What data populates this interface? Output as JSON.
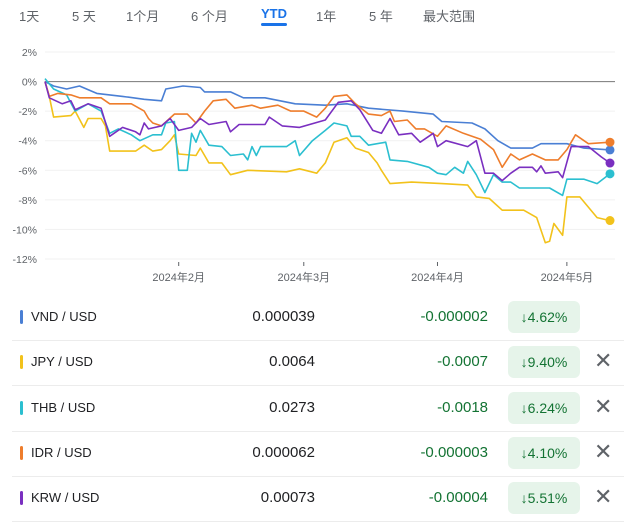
{
  "tabs": [
    {
      "label": "1天"
    },
    {
      "label": "5 天"
    },
    {
      "label": "1个月"
    },
    {
      "label": "6 个月"
    },
    {
      "label": "YTD",
      "active": true
    },
    {
      "label": "1年"
    },
    {
      "label": "5 年"
    },
    {
      "label": "最大范围"
    }
  ],
  "chart_data": {
    "type": "line",
    "ylim": [
      -12,
      2
    ],
    "xlim": [
      "2024-01-01",
      "2024-05-11"
    ],
    "y_ticks": [
      "2%",
      "0%",
      "-2%",
      "-4%",
      "-6%",
      "-8%",
      "-10%",
      "-12%"
    ],
    "y_tick_values": [
      2,
      0,
      -2,
      -4,
      -6,
      -8,
      -10,
      -12
    ],
    "x_ticks": [
      {
        "date": "2024-02-01",
        "label": "2024年2月"
      },
      {
        "date": "2024-03-01",
        "label": "2024年3月"
      },
      {
        "date": "2024-04-01",
        "label": "2024年4月"
      },
      {
        "date": "2024-05-01",
        "label": "2024年5月"
      }
    ],
    "baseline": 0,
    "grid": true,
    "series": [
      {
        "name": "VND / USD",
        "color": "#4a7fd4",
        "points": [
          [
            "2024-01-01",
            0
          ],
          [
            "2024-01-03",
            -0.3
          ],
          [
            "2024-01-06",
            -0.5
          ],
          [
            "2024-01-09",
            -0.3
          ],
          [
            "2024-01-13",
            -0.8
          ],
          [
            "2024-01-19",
            -1.0
          ],
          [
            "2024-01-24",
            -1.2
          ],
          [
            "2024-01-28",
            -1.3
          ],
          [
            "2024-01-29",
            -0.5
          ],
          [
            "2024-02-02",
            -0.3
          ],
          [
            "2024-02-06",
            -0.4
          ],
          [
            "2024-02-07",
            -0.7
          ],
          [
            "2024-02-13",
            -0.7
          ],
          [
            "2024-02-16",
            -1.1
          ],
          [
            "2024-02-21",
            -1.1
          ],
          [
            "2024-02-28",
            -1.5
          ],
          [
            "2024-03-06",
            -1.6
          ],
          [
            "2024-03-11",
            -1.5
          ],
          [
            "2024-03-16",
            -1.8
          ],
          [
            "2024-03-24",
            -2.0
          ],
          [
            "2024-03-31",
            -2.2
          ],
          [
            "2024-04-02",
            -2.7
          ],
          [
            "2024-04-09",
            -2.8
          ],
          [
            "2024-04-12",
            -3.2
          ],
          [
            "2024-04-15",
            -4.0
          ],
          [
            "2024-04-18",
            -4.5
          ],
          [
            "2024-04-23",
            -4.5
          ],
          [
            "2024-04-25",
            -4.2
          ],
          [
            "2024-05-01",
            -4.2
          ],
          [
            "2024-05-05",
            -4.5
          ],
          [
            "2024-05-11",
            -4.62
          ]
        ]
      },
      {
        "name": "JPY / USD",
        "color": "#f2c21b",
        "points": [
          [
            "2024-01-01",
            0
          ],
          [
            "2024-01-02",
            -1
          ],
          [
            "2024-01-03",
            -2.4
          ],
          [
            "2024-01-07",
            -2.3
          ],
          [
            "2024-01-08",
            -2.0
          ],
          [
            "2024-01-10",
            -3.1
          ],
          [
            "2024-01-11",
            -2.5
          ],
          [
            "2024-01-14",
            -2.5
          ],
          [
            "2024-01-15",
            -3.0
          ],
          [
            "2024-01-16",
            -4.7
          ],
          [
            "2024-01-22",
            -4.7
          ],
          [
            "2024-01-24",
            -4.3
          ],
          [
            "2024-01-26",
            -4.7
          ],
          [
            "2024-01-28",
            -4.6
          ],
          [
            "2024-01-30",
            -4.0
          ],
          [
            "2024-01-31",
            -3.6
          ],
          [
            "2024-02-01",
            -4.9
          ],
          [
            "2024-02-05",
            -5.0
          ],
          [
            "2024-02-06",
            -4.5
          ],
          [
            "2024-02-08",
            -5.5
          ],
          [
            "2024-02-11",
            -5.5
          ],
          [
            "2024-02-13",
            -6.3
          ],
          [
            "2024-02-17",
            -6.0
          ],
          [
            "2024-02-26",
            -6.1
          ],
          [
            "2024-02-29",
            -5.9
          ],
          [
            "2024-03-04",
            -6.2
          ],
          [
            "2024-03-06",
            -5.5
          ],
          [
            "2024-03-08",
            -4.1
          ],
          [
            "2024-03-11",
            -3.8
          ],
          [
            "2024-03-13",
            -4.5
          ],
          [
            "2024-03-16",
            -4.8
          ],
          [
            "2024-03-18",
            -5.5
          ],
          [
            "2024-03-19",
            -6.0
          ],
          [
            "2024-03-21",
            -6.9
          ],
          [
            "2024-03-26",
            -6.8
          ],
          [
            "2024-04-02",
            -6.9
          ],
          [
            "2024-04-08",
            -7.0
          ],
          [
            "2024-04-10",
            -7.8
          ],
          [
            "2024-04-13",
            -7.9
          ],
          [
            "2024-04-16",
            -8.7
          ],
          [
            "2024-04-21",
            -8.7
          ],
          [
            "2024-04-24",
            -9.2
          ],
          [
            "2024-04-26",
            -10.9
          ],
          [
            "2024-04-27",
            -10.8
          ],
          [
            "2024-04-28",
            -9.6
          ],
          [
            "2024-04-30",
            -10.4
          ],
          [
            "2024-05-01",
            -7.8
          ],
          [
            "2024-05-04",
            -7.8
          ],
          [
            "2024-05-08",
            -9.2
          ],
          [
            "2024-05-11",
            -9.4
          ]
        ]
      },
      {
        "name": "THB / USD",
        "color": "#2bbfd0",
        "points": [
          [
            "2024-01-01",
            0.2
          ],
          [
            "2024-01-03",
            -0.5
          ],
          [
            "2024-01-06",
            -0.9
          ],
          [
            "2024-01-08",
            -2.0
          ],
          [
            "2024-01-11",
            -1.5
          ],
          [
            "2024-01-14",
            -2.0
          ],
          [
            "2024-01-16",
            -3.5
          ],
          [
            "2024-01-18",
            -3.2
          ],
          [
            "2024-01-21",
            -3.6
          ],
          [
            "2024-01-23",
            -4.0
          ],
          [
            "2024-01-26",
            -3.6
          ],
          [
            "2024-01-28",
            -3.6
          ],
          [
            "2024-01-29",
            -2.8
          ],
          [
            "2024-01-31",
            -2.7
          ],
          [
            "2024-02-01",
            -6.0
          ],
          [
            "2024-02-03",
            -6.0
          ],
          [
            "2024-02-04",
            -3.5
          ],
          [
            "2024-02-05",
            -4.1
          ],
          [
            "2024-02-06",
            -3.3
          ],
          [
            "2024-02-08",
            -4.3
          ],
          [
            "2024-02-11",
            -4.4
          ],
          [
            "2024-02-13",
            -5.0
          ],
          [
            "2024-02-16",
            -4.9
          ],
          [
            "2024-02-17",
            -5.3
          ],
          [
            "2024-02-18",
            -4.4
          ],
          [
            "2024-02-19",
            -5.0
          ],
          [
            "2024-02-20",
            -4.4
          ],
          [
            "2024-02-26",
            -4.4
          ],
          [
            "2024-02-28",
            -4.0
          ],
          [
            "2024-02-29",
            -5.0
          ],
          [
            "2024-03-03",
            -4.0
          ],
          [
            "2024-03-06",
            -3.3
          ],
          [
            "2024-03-08",
            -2.8
          ],
          [
            "2024-03-11",
            -3.0
          ],
          [
            "2024-03-12",
            -3.7
          ],
          [
            "2024-03-14",
            -3.7
          ],
          [
            "2024-03-16",
            -4.3
          ],
          [
            "2024-03-20",
            -4.1
          ],
          [
            "2024-03-21",
            -5.3
          ],
          [
            "2024-03-25",
            -5.4
          ],
          [
            "2024-03-30",
            -5.8
          ],
          [
            "2024-04-01",
            -6.2
          ],
          [
            "2024-04-03",
            -6.3
          ],
          [
            "2024-04-05",
            -5.8
          ],
          [
            "2024-04-07",
            -6.2
          ],
          [
            "2024-04-08",
            -5.4
          ],
          [
            "2024-04-10",
            -6.3
          ],
          [
            "2024-04-12",
            -7.5
          ],
          [
            "2024-04-14",
            -6.3
          ],
          [
            "2024-04-16",
            -6.8
          ],
          [
            "2024-04-18",
            -6.8
          ],
          [
            "2024-04-20",
            -7.2
          ],
          [
            "2024-04-27",
            -7.2
          ],
          [
            "2024-04-30",
            -7.7
          ],
          [
            "2024-05-01",
            -6.6
          ],
          [
            "2024-05-05",
            -6.6
          ],
          [
            "2024-05-08",
            -6.9
          ],
          [
            "2024-05-11",
            -6.24
          ]
        ]
      },
      {
        "name": "IDR / USD",
        "color": "#ee7d2c",
        "points": [
          [
            "2024-01-01",
            0
          ],
          [
            "2024-01-02",
            -1.0
          ],
          [
            "2024-01-04",
            -0.8
          ],
          [
            "2024-01-07",
            -0.9
          ],
          [
            "2024-01-09",
            -1.1
          ],
          [
            "2024-01-14",
            -1.1
          ],
          [
            "2024-01-16",
            -1.5
          ],
          [
            "2024-01-21",
            -1.5
          ],
          [
            "2024-01-24",
            -2.0
          ],
          [
            "2024-01-25",
            -2.5
          ],
          [
            "2024-01-26",
            -2.8
          ],
          [
            "2024-01-28",
            -3.0
          ],
          [
            "2024-01-31",
            -2.2
          ],
          [
            "2024-02-03",
            -2.2
          ],
          [
            "2024-02-05",
            -2.8
          ],
          [
            "2024-02-07",
            -2.0
          ],
          [
            "2024-02-09",
            -1.3
          ],
          [
            "2024-02-12",
            -1.2
          ],
          [
            "2024-02-14",
            -1.8
          ],
          [
            "2024-02-18",
            -1.6
          ],
          [
            "2024-02-20",
            -1.8
          ],
          [
            "2024-02-24",
            -1.6
          ],
          [
            "2024-02-27",
            -2.0
          ],
          [
            "2024-03-01",
            -2.0
          ],
          [
            "2024-03-04",
            -2.4
          ],
          [
            "2024-03-06",
            -1.8
          ],
          [
            "2024-03-08",
            -1.0
          ],
          [
            "2024-03-11",
            -0.9
          ],
          [
            "2024-03-13",
            -1.5
          ],
          [
            "2024-03-16",
            -2.2
          ],
          [
            "2024-03-19",
            -2.3
          ],
          [
            "2024-03-21",
            -2.0
          ],
          [
            "2024-03-22",
            -2.7
          ],
          [
            "2024-03-25",
            -2.6
          ],
          [
            "2024-03-27",
            -3.2
          ],
          [
            "2024-03-29",
            -3.2
          ],
          [
            "2024-04-01",
            -3.7
          ],
          [
            "2024-04-03",
            -3.0
          ],
          [
            "2024-04-07",
            -3.5
          ],
          [
            "2024-04-11",
            -3.9
          ],
          [
            "2024-04-14",
            -4.6
          ],
          [
            "2024-04-16",
            -5.8
          ],
          [
            "2024-04-18",
            -4.9
          ],
          [
            "2024-04-20",
            -5.3
          ],
          [
            "2024-04-23",
            -4.9
          ],
          [
            "2024-04-26",
            -5.3
          ],
          [
            "2024-04-29",
            -5.3
          ],
          [
            "2024-05-01",
            -4.6
          ],
          [
            "2024-05-03",
            -3.6
          ],
          [
            "2024-05-06",
            -4.2
          ],
          [
            "2024-05-11",
            -4.1
          ]
        ]
      },
      {
        "name": "KRW / USD",
        "color": "#7a2fc0",
        "points": [
          [
            "2024-01-01",
            0
          ],
          [
            "2024-01-02",
            -1.1
          ],
          [
            "2024-01-05",
            -1.5
          ],
          [
            "2024-01-07",
            -1.3
          ],
          [
            "2024-01-08",
            -1.9
          ],
          [
            "2024-01-11",
            -1.5
          ],
          [
            "2024-01-14",
            -1.8
          ],
          [
            "2024-01-16",
            -3.7
          ],
          [
            "2024-01-19",
            -3.1
          ],
          [
            "2024-01-22",
            -3.4
          ],
          [
            "2024-01-23",
            -3.6
          ],
          [
            "2024-01-24",
            -2.8
          ],
          [
            "2024-01-25",
            -3.2
          ],
          [
            "2024-01-28",
            -3.0
          ],
          [
            "2024-01-30",
            -2.5
          ],
          [
            "2024-02-01",
            -3.3
          ],
          [
            "2024-02-04",
            -3.1
          ],
          [
            "2024-02-06",
            -2.5
          ],
          [
            "2024-02-08",
            -2.9
          ],
          [
            "2024-02-12",
            -2.7
          ],
          [
            "2024-02-13",
            -3.4
          ],
          [
            "2024-02-15",
            -2.9
          ],
          [
            "2024-02-21",
            -2.9
          ],
          [
            "2024-02-22",
            -2.4
          ],
          [
            "2024-02-25",
            -3.0
          ],
          [
            "2024-02-29",
            -3.1
          ],
          [
            "2024-03-06",
            -2.6
          ],
          [
            "2024-03-09",
            -1.4
          ],
          [
            "2024-03-12",
            -1.3
          ],
          [
            "2024-03-14",
            -1.9
          ],
          [
            "2024-03-17",
            -3.3
          ],
          [
            "2024-03-19",
            -3.5
          ],
          [
            "2024-03-21",
            -2.5
          ],
          [
            "2024-03-23",
            -3.6
          ],
          [
            "2024-03-26",
            -3.5
          ],
          [
            "2024-03-28",
            -4.1
          ],
          [
            "2024-03-31",
            -3.5
          ],
          [
            "2024-04-01",
            -4.4
          ],
          [
            "2024-04-03",
            -4.0
          ],
          [
            "2024-04-08",
            -4.4
          ],
          [
            "2024-04-10",
            -4.0
          ],
          [
            "2024-04-12",
            -6.2
          ],
          [
            "2024-04-14",
            -6.2
          ],
          [
            "2024-04-16",
            -6.7
          ],
          [
            "2024-04-18",
            -6.2
          ],
          [
            "2024-04-20",
            -5.8
          ],
          [
            "2024-04-23",
            -5.8
          ],
          [
            "2024-04-24",
            -6.1
          ],
          [
            "2024-04-25",
            -5.7
          ],
          [
            "2024-04-26",
            -6.2
          ],
          [
            "2024-04-29",
            -6.1
          ],
          [
            "2024-04-30",
            -6.5
          ],
          [
            "2024-05-02",
            -4.4
          ],
          [
            "2024-05-06",
            -4.4
          ],
          [
            "2024-05-09",
            -5.1
          ],
          [
            "2024-05-11",
            -5.51
          ]
        ]
      }
    ]
  },
  "table": [
    {
      "pair": "VND / USD",
      "color": "#4a7fd4",
      "value": "0.000039",
      "change": "-0.000002",
      "percent": "↓4.62%",
      "removable": false
    },
    {
      "pair": "JPY / USD",
      "color": "#f2c21b",
      "value": "0.0064",
      "change": "-0.0007",
      "percent": "↓9.40%",
      "removable": true
    },
    {
      "pair": "THB / USD",
      "color": "#2bbfd0",
      "value": "0.0273",
      "change": "-0.0018",
      "percent": "↓6.24%",
      "removable": true
    },
    {
      "pair": "IDR / USD",
      "color": "#ee7d2c",
      "value": "0.000062",
      "change": "-0.000003",
      "percent": "↓4.10%",
      "removable": true
    },
    {
      "pair": "KRW / USD",
      "color": "#7a2fc0",
      "value": "0.00073",
      "change": "-0.00004",
      "percent": "↓5.51%",
      "removable": true
    }
  ],
  "close_icon": "✕"
}
